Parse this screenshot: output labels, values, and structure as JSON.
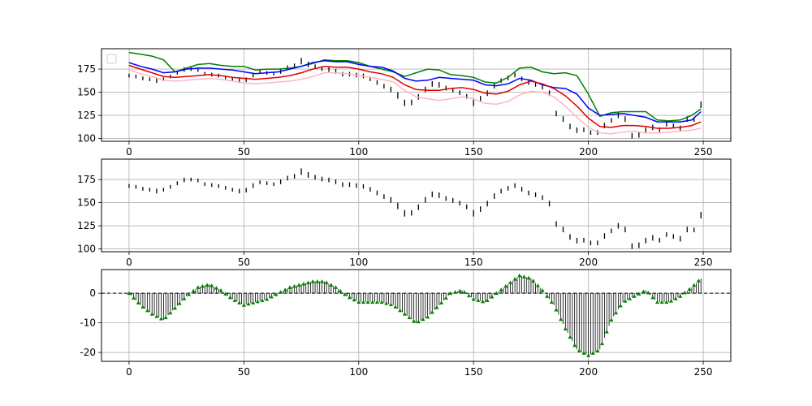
{
  "chart_data": [
    {
      "type": "line",
      "title": "",
      "xlabel": "",
      "ylabel": "",
      "xlim": [
        -12,
        262
      ],
      "ylim": [
        97,
        197
      ],
      "xticks": [
        0,
        50,
        100,
        150,
        200,
        250
      ],
      "yticks": [
        100,
        125,
        150,
        175
      ],
      "grid": true,
      "legend": {
        "placement": "upper-left",
        "entries": []
      },
      "x": [
        0,
        5,
        10,
        15,
        20,
        25,
        30,
        35,
        40,
        45,
        50,
        55,
        60,
        65,
        70,
        75,
        80,
        85,
        90,
        95,
        100,
        105,
        110,
        115,
        120,
        125,
        130,
        135,
        140,
        145,
        150,
        155,
        160,
        165,
        170,
        175,
        180,
        185,
        190,
        195,
        200,
        205,
        210,
        215,
        220,
        225,
        230,
        235,
        240,
        245,
        249
      ],
      "series": [
        {
          "role": "upper",
          "color": "#008000",
          "values": [
            193,
            191,
            189,
            185,
            172,
            176,
            180,
            181,
            179,
            178,
            178,
            174,
            175,
            175,
            176,
            178,
            181,
            185,
            184,
            184,
            182,
            178,
            175,
            172,
            167,
            171,
            175,
            174,
            169,
            168,
            166,
            161,
            160,
            166,
            176,
            177,
            172,
            170,
            171,
            168,
            148,
            124,
            128,
            129,
            129,
            129,
            120,
            119,
            120,
            125,
            132
          ]
        },
        {
          "role": "ma-blue",
          "color": "#0000ff",
          "values": [
            182,
            178,
            175,
            171,
            172,
            175,
            176,
            176,
            175,
            174,
            172,
            170,
            171,
            172,
            175,
            178,
            182,
            184,
            183,
            183,
            180,
            178,
            177,
            173,
            165,
            162,
            163,
            166,
            165,
            164,
            163,
            158,
            157,
            159,
            165,
            163,
            158,
            155,
            154,
            148,
            133,
            125,
            126,
            127,
            125,
            123,
            118,
            118,
            118,
            120,
            129
          ]
        },
        {
          "role": "ma-red",
          "color": "#e00000",
          "values": [
            179,
            175,
            171,
            167,
            166,
            167,
            168,
            169,
            168,
            166,
            165,
            164,
            165,
            166,
            168,
            171,
            175,
            178,
            177,
            177,
            175,
            172,
            170,
            166,
            158,
            153,
            152,
            152,
            154,
            155,
            153,
            149,
            148,
            151,
            158,
            162,
            159,
            154,
            146,
            135,
            122,
            113,
            112,
            114,
            114,
            113,
            111,
            111,
            112,
            114,
            118
          ]
        },
        {
          "role": "lower",
          "color": "#ffb6c1",
          "values": [
            174,
            170,
            167,
            163,
            162,
            163,
            164,
            165,
            164,
            162,
            160,
            159,
            160,
            161,
            162,
            164,
            167,
            171,
            171,
            170,
            168,
            166,
            164,
            161,
            152,
            145,
            143,
            141,
            143,
            145,
            143,
            138,
            137,
            140,
            147,
            151,
            150,
            145,
            135,
            123,
            112,
            106,
            105,
            107,
            108,
            106,
            106,
            107,
            108,
            109,
            111
          ]
        }
      ],
      "price_bars": [
        {
          "x": 0,
          "low": 166,
          "high": 170
        },
        {
          "x": 3,
          "low": 165,
          "high": 169
        },
        {
          "x": 6,
          "low": 163,
          "high": 167
        },
        {
          "x": 9,
          "low": 162,
          "high": 166
        },
        {
          "x": 12,
          "low": 160,
          "high": 165
        },
        {
          "x": 15,
          "low": 162,
          "high": 166
        },
        {
          "x": 18,
          "low": 165,
          "high": 169
        },
        {
          "x": 21,
          "low": 169,
          "high": 173
        },
        {
          "x": 24,
          "low": 172,
          "high": 177
        },
        {
          "x": 27,
          "low": 173,
          "high": 177
        },
        {
          "x": 30,
          "low": 172,
          "high": 176
        },
        {
          "x": 33,
          "low": 168,
          "high": 172
        },
        {
          "x": 36,
          "low": 167,
          "high": 171
        },
        {
          "x": 39,
          "low": 166,
          "high": 170
        },
        {
          "x": 42,
          "low": 164,
          "high": 168
        },
        {
          "x": 45,
          "low": 162,
          "high": 166
        },
        {
          "x": 48,
          "low": 160,
          "high": 165
        },
        {
          "x": 51,
          "low": 161,
          "high": 166
        },
        {
          "x": 54,
          "low": 166,
          "high": 171
        },
        {
          "x": 57,
          "low": 170,
          "high": 174
        },
        {
          "x": 60,
          "low": 169,
          "high": 173
        },
        {
          "x": 63,
          "low": 168,
          "high": 172
        },
        {
          "x": 66,
          "low": 170,
          "high": 175
        },
        {
          "x": 69,
          "low": 174,
          "high": 179
        },
        {
          "x": 72,
          "low": 176,
          "high": 181
        },
        {
          "x": 75,
          "low": 180,
          "high": 187
        },
        {
          "x": 78,
          "low": 177,
          "high": 183
        },
        {
          "x": 81,
          "low": 175,
          "high": 180
        },
        {
          "x": 84,
          "low": 173,
          "high": 178
        },
        {
          "x": 87,
          "low": 172,
          "high": 177
        },
        {
          "x": 90,
          "low": 170,
          "high": 175
        },
        {
          "x": 93,
          "low": 167,
          "high": 172
        },
        {
          "x": 96,
          "low": 167,
          "high": 172
        },
        {
          "x": 99,
          "low": 166,
          "high": 171
        },
        {
          "x": 102,
          "low": 165,
          "high": 170
        },
        {
          "x": 105,
          "low": 162,
          "high": 167
        },
        {
          "x": 108,
          "low": 158,
          "high": 163
        },
        {
          "x": 111,
          "low": 154,
          "high": 159
        },
        {
          "x": 114,
          "low": 150,
          "high": 156
        },
        {
          "x": 117,
          "low": 143,
          "high": 150
        },
        {
          "x": 120,
          "low": 135,
          "high": 142
        },
        {
          "x": 123,
          "low": 136,
          "high": 142
        },
        {
          "x": 126,
          "low": 142,
          "high": 148
        },
        {
          "x": 129,
          "low": 150,
          "high": 156
        },
        {
          "x": 132,
          "low": 156,
          "high": 162
        },
        {
          "x": 135,
          "low": 155,
          "high": 161
        },
        {
          "x": 138,
          "low": 152,
          "high": 157
        },
        {
          "x": 141,
          "low": 150,
          "high": 155
        },
        {
          "x": 144,
          "low": 147,
          "high": 152
        },
        {
          "x": 147,
          "low": 143,
          "high": 148
        },
        {
          "x": 150,
          "low": 135,
          "high": 142
        },
        {
          "x": 153,
          "low": 140,
          "high": 146
        },
        {
          "x": 156,
          "low": 146,
          "high": 152
        },
        {
          "x": 159,
          "low": 154,
          "high": 160
        },
        {
          "x": 162,
          "low": 160,
          "high": 165
        },
        {
          "x": 165,
          "low": 163,
          "high": 168
        },
        {
          "x": 168,
          "low": 166,
          "high": 171
        },
        {
          "x": 171,
          "low": 162,
          "high": 167
        },
        {
          "x": 174,
          "low": 158,
          "high": 163
        },
        {
          "x": 177,
          "low": 156,
          "high": 161
        },
        {
          "x": 180,
          "low": 153,
          "high": 158
        },
        {
          "x": 183,
          "low": 146,
          "high": 152
        },
        {
          "x": 186,
          "low": 124,
          "high": 130
        },
        {
          "x": 189,
          "low": 118,
          "high": 124
        },
        {
          "x": 192,
          "low": 110,
          "high": 116
        },
        {
          "x": 195,
          "low": 106,
          "high": 112
        },
        {
          "x": 198,
          "low": 107,
          "high": 112
        },
        {
          "x": 201,
          "low": 104,
          "high": 109
        },
        {
          "x": 204,
          "low": 104,
          "high": 109
        },
        {
          "x": 207,
          "low": 111,
          "high": 117
        },
        {
          "x": 210,
          "low": 117,
          "high": 122
        },
        {
          "x": 213,
          "low": 122,
          "high": 128
        },
        {
          "x": 216,
          "low": 118,
          "high": 124
        },
        {
          "x": 219,
          "low": 100,
          "high": 106
        },
        {
          "x": 222,
          "low": 101,
          "high": 107
        },
        {
          "x": 225,
          "low": 106,
          "high": 112
        },
        {
          "x": 228,
          "low": 109,
          "high": 115
        },
        {
          "x": 231,
          "low": 107,
          "high": 112
        },
        {
          "x": 234,
          "low": 113,
          "high": 118
        },
        {
          "x": 237,
          "low": 111,
          "high": 116
        },
        {
          "x": 240,
          "low": 108,
          "high": 114
        },
        {
          "x": 243,
          "low": 118,
          "high": 124
        },
        {
          "x": 246,
          "low": 118,
          "high": 123
        },
        {
          "x": 249,
          "low": 133,
          "high": 140
        }
      ]
    },
    {
      "type": "bar",
      "title": "",
      "xlabel": "",
      "ylabel": "",
      "xlim": [
        -12,
        262
      ],
      "ylim": [
        97,
        197
      ],
      "xticks": [
        0,
        50,
        100,
        150,
        200,
        250
      ],
      "yticks": [
        100,
        125,
        150,
        175
      ],
      "grid": true,
      "series": [
        {
          "role": "price",
          "color": "#000000"
        }
      ]
    },
    {
      "type": "bar",
      "title": "",
      "xlabel": "",
      "ylabel": "",
      "xlim": [
        -12,
        262
      ],
      "ylim": [
        -23,
        8
      ],
      "xticks": [
        0,
        50,
        100,
        150,
        200,
        250
      ],
      "yticks": [
        -20,
        -10,
        0
      ],
      "grid": true,
      "zero_line": {
        "y": 0,
        "style": "dashed",
        "color": "#000000"
      },
      "series": [
        {
          "role": "oscillator",
          "bar_color": "#000000",
          "marker_color": "#008000",
          "marker": "triangle"
        }
      ],
      "x": [
        0,
        5,
        10,
        15,
        20,
        25,
        30,
        35,
        40,
        45,
        50,
        55,
        60,
        65,
        70,
        75,
        80,
        85,
        90,
        95,
        100,
        105,
        110,
        115,
        120,
        125,
        130,
        135,
        140,
        145,
        150,
        155,
        160,
        165,
        170,
        175,
        180,
        185,
        190,
        195,
        200,
        205,
        210,
        215,
        220,
        225,
        230,
        235,
        240,
        245,
        249
      ],
      "values": [
        0,
        -4,
        -7,
        -9,
        -5,
        -1,
        2,
        3,
        1,
        -2,
        -4,
        -3,
        -2,
        0,
        2,
        3,
        4,
        4,
        2,
        -1,
        -3,
        -3,
        -3,
        -4,
        -7,
        -10,
        -8,
        -4,
        0,
        1,
        -2,
        -3,
        0,
        3,
        6,
        5,
        1,
        -4,
        -12,
        -19,
        -21,
        -19,
        -9,
        -3,
        -1,
        1,
        -3,
        -3,
        -1,
        2,
        5
      ]
    }
  ]
}
